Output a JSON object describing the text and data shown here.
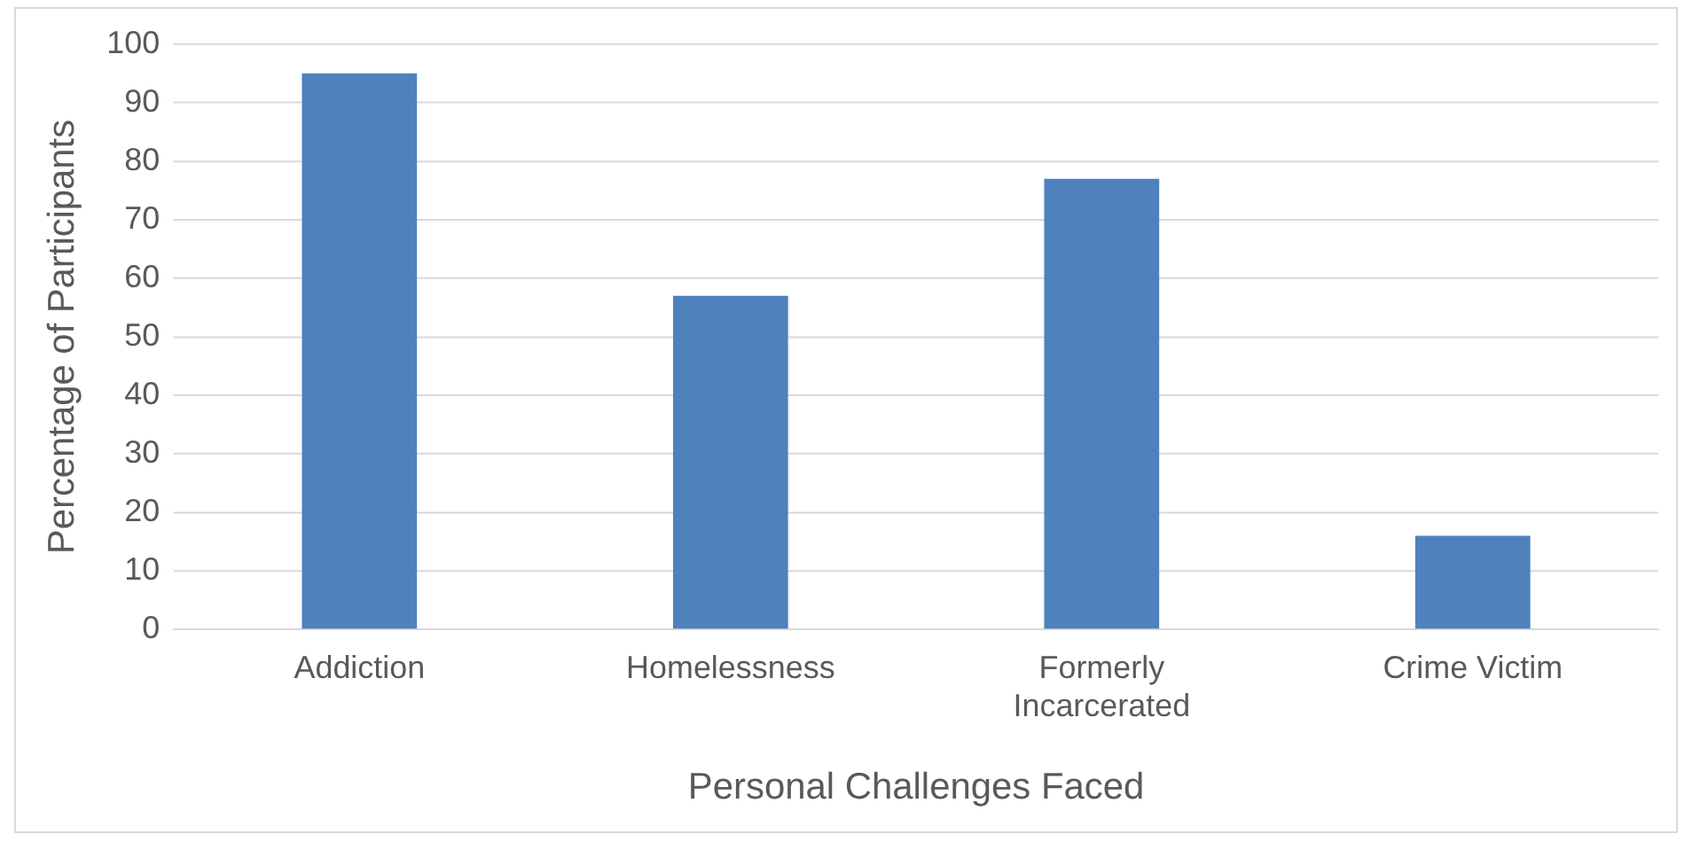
{
  "chart_data": {
    "type": "bar",
    "xlabel": "Personal Challenges Faced",
    "ylabel": "Percentage of Participants",
    "categories": [
      "Addiction",
      "Homelessness",
      "Formerly Incarcerated",
      "Crime Victim"
    ],
    "values": [
      95,
      57,
      77,
      16
    ],
    "color": "#4f81bd",
    "ylim": [
      0,
      100
    ],
    "yticks": [
      0,
      10,
      20,
      30,
      40,
      50,
      60,
      70,
      80,
      90,
      100
    ],
    "grid": "y"
  }
}
